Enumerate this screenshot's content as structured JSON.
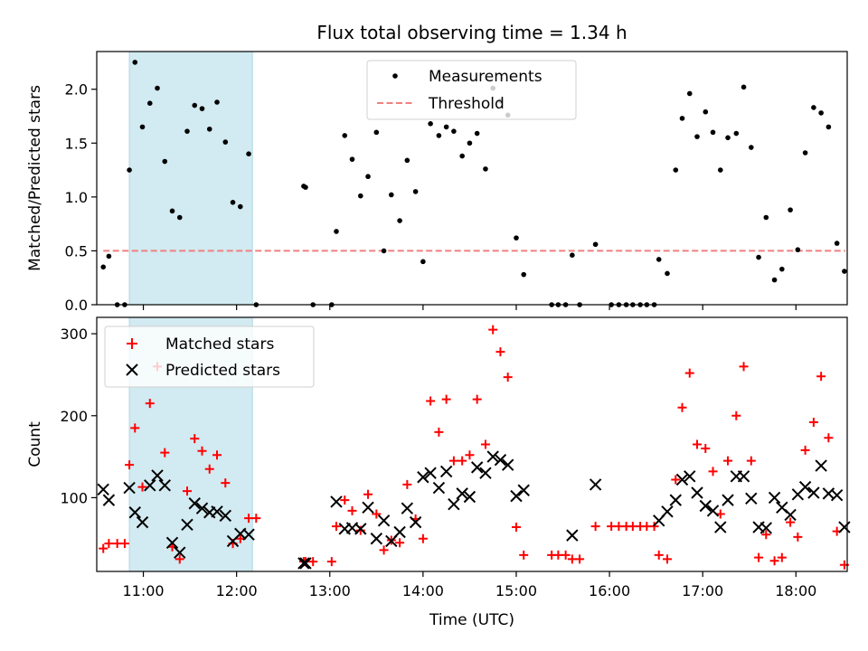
{
  "figure": {
    "title": "Flux total observing time = 1.34 h"
  },
  "colors": {
    "measurement": "#000000",
    "threshold": "#f08080",
    "matched": "#ff0000",
    "predicted": "#000000",
    "shade": "#add8e6"
  },
  "chart_data": [
    {
      "type": "scatter",
      "name": "ratio",
      "xlabel": "",
      "ylabel": "Matched/Predicted stars",
      "xlim": [
        10.5,
        18.55
      ],
      "ylim": [
        0,
        2.35
      ],
      "yticks": [
        0.0,
        0.5,
        1.0,
        1.5,
        2.0
      ],
      "ytick_labels": [
        "0.0",
        "0.5",
        "1.0",
        "1.5",
        "2.0"
      ],
      "xticks": [
        11,
        12,
        13,
        14,
        15,
        16,
        17,
        18
      ],
      "legend_position": "top-center",
      "shaded_span_x": [
        10.85,
        12.17
      ],
      "threshold": {
        "name": "Threshold",
        "y": 0.5,
        "x_range": [
          10.57,
          18.53
        ]
      },
      "series": [
        {
          "name": "Measurements",
          "marker": "dot",
          "points": [
            [
              10.57,
              0.35
            ],
            [
              10.63,
              0.45
            ],
            [
              10.72,
              0.0
            ],
            [
              10.8,
              0.0
            ],
            [
              10.85,
              1.25
            ],
            [
              10.91,
              2.25
            ],
            [
              10.99,
              1.65
            ],
            [
              11.07,
              1.87
            ],
            [
              11.15,
              2.01
            ],
            [
              11.23,
              1.33
            ],
            [
              11.31,
              0.87
            ],
            [
              11.39,
              0.81
            ],
            [
              11.47,
              1.61
            ],
            [
              11.55,
              1.85
            ],
            [
              11.63,
              1.82
            ],
            [
              11.71,
              1.63
            ],
            [
              11.79,
              1.88
            ],
            [
              11.88,
              1.51
            ],
            [
              11.96,
              0.95
            ],
            [
              12.04,
              0.91
            ],
            [
              12.13,
              1.4
            ],
            [
              12.21,
              0.0
            ],
            [
              12.72,
              1.1
            ],
            [
              12.74,
              1.09
            ],
            [
              12.82,
              0.0
            ],
            [
              13.02,
              0.0
            ],
            [
              13.07,
              0.68
            ],
            [
              13.16,
              1.57
            ],
            [
              13.24,
              1.35
            ],
            [
              13.33,
              1.01
            ],
            [
              13.41,
              1.19
            ],
            [
              13.5,
              1.6
            ],
            [
              13.58,
              0.5
            ],
            [
              13.66,
              1.02
            ],
            [
              13.75,
              0.78
            ],
            [
              13.83,
              1.34
            ],
            [
              13.92,
              1.05
            ],
            [
              14.0,
              0.4
            ],
            [
              14.08,
              1.68
            ],
            [
              14.17,
              1.57
            ],
            [
              14.25,
              1.65
            ],
            [
              14.33,
              1.61
            ],
            [
              14.42,
              1.38
            ],
            [
              14.5,
              1.5
            ],
            [
              14.58,
              1.59
            ],
            [
              14.67,
              1.26
            ],
            [
              14.75,
              2.01
            ],
            [
              14.83,
              1.89
            ],
            [
              14.91,
              1.76
            ],
            [
              15.0,
              0.62
            ],
            [
              15.08,
              0.28
            ],
            [
              15.38,
              0.0
            ],
            [
              15.45,
              0.0
            ],
            [
              15.53,
              0.0
            ],
            [
              15.6,
              0.46
            ],
            [
              15.68,
              0.0
            ],
            [
              15.85,
              0.56
            ],
            [
              16.02,
              0.0
            ],
            [
              16.1,
              0.0
            ],
            [
              16.18,
              0.0
            ],
            [
              16.25,
              0.0
            ],
            [
              16.33,
              0.0
            ],
            [
              16.4,
              0.0
            ],
            [
              16.48,
              0.0
            ],
            [
              16.53,
              0.42
            ],
            [
              16.62,
              0.29
            ],
            [
              16.71,
              1.25
            ],
            [
              16.78,
              1.73
            ],
            [
              16.86,
              1.96
            ],
            [
              16.94,
              1.56
            ],
            [
              17.03,
              1.79
            ],
            [
              17.11,
              1.6
            ],
            [
              17.19,
              1.25
            ],
            [
              17.27,
              1.55
            ],
            [
              17.36,
              1.59
            ],
            [
              17.44,
              2.02
            ],
            [
              17.52,
              1.46
            ],
            [
              17.6,
              0.44
            ],
            [
              17.68,
              0.81
            ],
            [
              17.77,
              0.23
            ],
            [
              17.85,
              0.33
            ],
            [
              17.94,
              0.88
            ],
            [
              18.02,
              0.51
            ],
            [
              18.1,
              1.41
            ],
            [
              18.19,
              1.83
            ],
            [
              18.27,
              1.78
            ],
            [
              18.35,
              1.65
            ],
            [
              18.44,
              0.57
            ],
            [
              18.52,
              0.31
            ]
          ]
        }
      ]
    },
    {
      "type": "scatter",
      "name": "counts",
      "xlabel": "Time (UTC)",
      "ylabel": "Count",
      "xlim": [
        10.5,
        18.55
      ],
      "ylim": [
        10,
        320
      ],
      "yticks": [
        100,
        200,
        300
      ],
      "ytick_labels": [
        "100",
        "200",
        "300"
      ],
      "xticks": [
        11,
        12,
        13,
        14,
        15,
        16,
        17,
        18
      ],
      "xtick_labels": [
        "11:00",
        "12:00",
        "13:00",
        "14:00",
        "15:00",
        "16:00",
        "17:00",
        "18:00"
      ],
      "legend_position": "top-left",
      "shaded_span_x": [
        10.85,
        12.17
      ],
      "series": [
        {
          "name": "Matched stars",
          "marker": "plus",
          "points": [
            [
              10.57,
              38
            ],
            [
              10.63,
              44
            ],
            [
              10.72,
              44
            ],
            [
              10.8,
              44
            ],
            [
              10.85,
              140
            ],
            [
              10.91,
              185
            ],
            [
              10.99,
              113
            ],
            [
              11.07,
              215
            ],
            [
              11.15,
              260
            ],
            [
              11.23,
              155
            ],
            [
              11.31,
              40
            ],
            [
              11.39,
              25
            ],
            [
              11.47,
              108
            ],
            [
              11.55,
              172
            ],
            [
              11.63,
              157
            ],
            [
              11.71,
              135
            ],
            [
              11.79,
              152
            ],
            [
              11.88,
              118
            ],
            [
              11.96,
              44
            ],
            [
              12.04,
              50
            ],
            [
              12.13,
              75
            ],
            [
              12.21,
              75
            ],
            [
              12.72,
              22
            ],
            [
              12.74,
              22
            ],
            [
              12.82,
              22
            ],
            [
              13.02,
              22
            ],
            [
              13.07,
              65
            ],
            [
              13.16,
              97
            ],
            [
              13.24,
              84
            ],
            [
              13.33,
              60
            ],
            [
              13.41,
              104
            ],
            [
              13.5,
              80
            ],
            [
              13.58,
              36
            ],
            [
              13.66,
              48
            ],
            [
              13.75,
              45
            ],
            [
              13.83,
              116
            ],
            [
              13.92,
              74
            ],
            [
              14.0,
              50
            ],
            [
              14.08,
              218
            ],
            [
              14.17,
              180
            ],
            [
              14.25,
              220
            ],
            [
              14.33,
              145
            ],
            [
              14.42,
              145
            ],
            [
              14.5,
              152
            ],
            [
              14.58,
              220
            ],
            [
              14.67,
              165
            ],
            [
              14.75,
              305
            ],
            [
              14.83,
              278
            ],
            [
              14.91,
              247
            ],
            [
              15.0,
              64
            ],
            [
              15.08,
              30
            ],
            [
              15.38,
              30
            ],
            [
              15.45,
              30
            ],
            [
              15.53,
              30
            ],
            [
              15.6,
              25
            ],
            [
              15.68,
              25
            ],
            [
              15.85,
              65
            ],
            [
              16.02,
              65
            ],
            [
              16.1,
              65
            ],
            [
              16.18,
              65
            ],
            [
              16.25,
              65
            ],
            [
              16.33,
              65
            ],
            [
              16.4,
              65
            ],
            [
              16.48,
              65
            ],
            [
              16.53,
              30
            ],
            [
              16.62,
              25
            ],
            [
              16.71,
              122
            ],
            [
              16.78,
              210
            ],
            [
              16.86,
              252
            ],
            [
              16.94,
              165
            ],
            [
              17.03,
              160
            ],
            [
              17.11,
              132
            ],
            [
              17.19,
              80
            ],
            [
              17.27,
              145
            ],
            [
              17.36,
              200
            ],
            [
              17.44,
              260
            ],
            [
              17.52,
              145
            ],
            [
              17.6,
              27
            ],
            [
              17.68,
              55
            ],
            [
              17.77,
              23
            ],
            [
              17.85,
              27
            ],
            [
              17.94,
              70
            ],
            [
              18.02,
              52
            ],
            [
              18.1,
              158
            ],
            [
              18.19,
              192
            ],
            [
              18.27,
              248
            ],
            [
              18.35,
              173
            ],
            [
              18.44,
              59
            ],
            [
              18.52,
              18
            ]
          ]
        },
        {
          "name": "Predicted stars",
          "marker": "x",
          "points": [
            [
              10.57,
              110
            ],
            [
              10.63,
              97
            ],
            [
              10.85,
              112
            ],
            [
              10.91,
              82
            ],
            [
              10.99,
              70
            ],
            [
              11.07,
              115
            ],
            [
              11.15,
              127
            ],
            [
              11.23,
              115
            ],
            [
              11.31,
              45
            ],
            [
              11.39,
              33
            ],
            [
              11.47,
              67
            ],
            [
              11.55,
              93
            ],
            [
              11.63,
              87
            ],
            [
              11.71,
              82
            ],
            [
              11.79,
              83
            ],
            [
              11.88,
              78
            ],
            [
              11.96,
              47
            ],
            [
              12.04,
              56
            ],
            [
              12.13,
              55
            ],
            [
              12.72,
              20
            ],
            [
              12.74,
              20
            ],
            [
              13.07,
              95
            ],
            [
              13.16,
              62
            ],
            [
              13.24,
              63
            ],
            [
              13.33,
              62
            ],
            [
              13.41,
              88
            ],
            [
              13.5,
              50
            ],
            [
              13.58,
              72
            ],
            [
              13.66,
              47
            ],
            [
              13.75,
              58
            ],
            [
              13.83,
              87
            ],
            [
              13.92,
              70
            ],
            [
              14.0,
              125
            ],
            [
              14.08,
              130
            ],
            [
              14.17,
              112
            ],
            [
              14.25,
              132
            ],
            [
              14.33,
              92
            ],
            [
              14.42,
              105
            ],
            [
              14.5,
              101
            ],
            [
              14.58,
              137
            ],
            [
              14.67,
              130
            ],
            [
              14.75,
              150
            ],
            [
              14.83,
              146
            ],
            [
              14.91,
              140
            ],
            [
              15.0,
              102
            ],
            [
              15.08,
              109
            ],
            [
              15.6,
              54
            ],
            [
              15.85,
              116
            ],
            [
              16.53,
              72
            ],
            [
              16.62,
              83
            ],
            [
              16.71,
              97
            ],
            [
              16.78,
              122
            ],
            [
              16.86,
              126
            ],
            [
              16.94,
              106
            ],
            [
              17.03,
              90
            ],
            [
              17.11,
              84
            ],
            [
              17.19,
              64
            ],
            [
              17.27,
              97
            ],
            [
              17.36,
              126
            ],
            [
              17.44,
              126
            ],
            [
              17.52,
              99
            ],
            [
              17.6,
              64
            ],
            [
              17.68,
              63
            ],
            [
              17.77,
              100
            ],
            [
              17.85,
              88
            ],
            [
              17.94,
              79
            ],
            [
              18.02,
              104
            ],
            [
              18.1,
              113
            ],
            [
              18.19,
              106
            ],
            [
              18.27,
              139
            ],
            [
              18.35,
              105
            ],
            [
              18.44,
              103
            ],
            [
              18.52,
              64
            ]
          ]
        }
      ]
    }
  ]
}
